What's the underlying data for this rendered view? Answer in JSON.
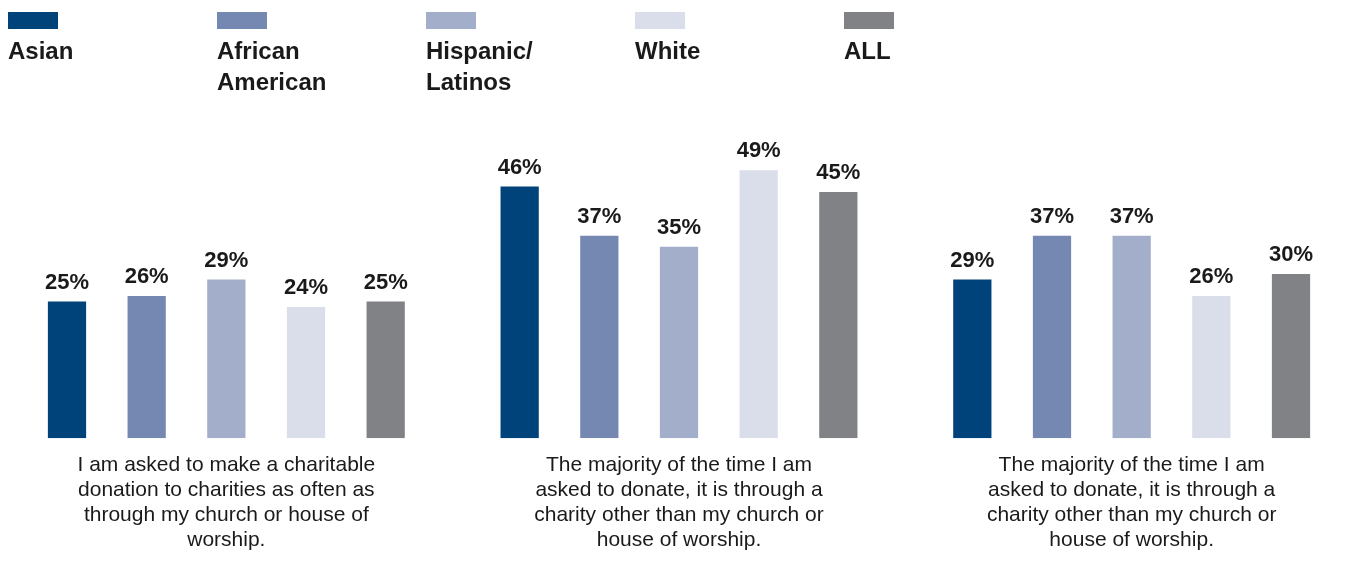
{
  "chart_data": {
    "type": "bar",
    "legend": "top left",
    "categories": [
      "I am asked to make a charitable donation to charities as often as through my church or house of worship.",
      "The majority of the time I am asked to donate, it is through a charity other than my church or house of worship.",
      "The majority of the time I am asked to donate, it is through a charity other than my church or house of worship."
    ],
    "series": [
      {
        "name": "Asian",
        "color": "#00427a",
        "values": [
          25,
          46,
          29
        ],
        "value_labels": [
          "25%",
          "46%",
          "29%"
        ]
      },
      {
        "name": "African American",
        "color": "#7588b2",
        "values": [
          26,
          37,
          37
        ],
        "value_labels": [
          "26%",
          "37%",
          "37%"
        ]
      },
      {
        "name": "Hispanic/ Latinos",
        "color": "#a3aeca",
        "values": [
          29,
          35,
          37
        ],
        "value_labels": [
          "29%",
          "35%",
          "37%"
        ]
      },
      {
        "name": "White",
        "color": "#dadeea",
        "values": [
          24,
          49,
          26
        ],
        "value_labels": [
          "24%",
          "49%",
          "26%"
        ]
      },
      {
        "name": "ALL",
        "color": "#808285",
        "values": [
          25,
          45,
          30
        ],
        "value_labels": [
          "25%",
          "45%",
          "30%"
        ]
      }
    ]
  }
}
